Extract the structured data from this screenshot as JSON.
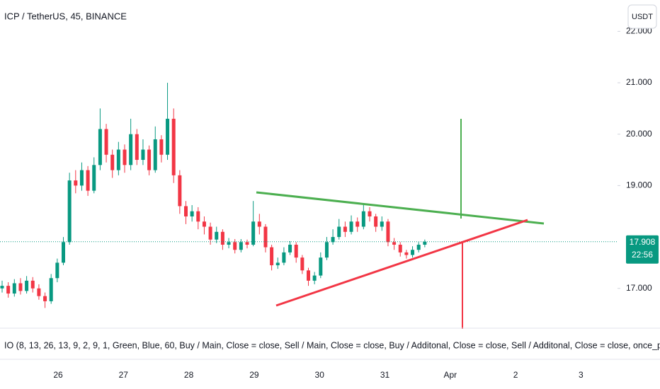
{
  "chart_data": {
    "type": "candlestick",
    "title": "ICP / TetherUS, 45, BINANCE",
    "currency_button": "USDT",
    "last_price": 17.908,
    "countdown": "22:56",
    "indicator": "IO (8, 13, 26, 13, 9, 2, 9, 1, Green, Blue, 60, Buy / Main, Close = close, Sell / Main, Close = close, Buy / Additonal, Close = close, Sell / Additonal, Close = close, once_per_bar_close,",
    "up_color": "#089981",
    "down_color": "#f23645",
    "categories": [
      "26",
      "27",
      "28",
      "29",
      "30",
      "31",
      "Apr",
      "2",
      "3"
    ],
    "ylim": [
      16.24,
      22.61
    ],
    "yticks": [
      {
        "value": 22,
        "label": "22.000"
      },
      {
        "value": 21,
        "label": "21.000"
      },
      {
        "value": 20,
        "label": "20.000"
      },
      {
        "value": 19,
        "label": "19.000"
      },
      {
        "value": 17,
        "label": "17.000"
      }
    ],
    "open": [
      17.0,
      17.05,
      16.9,
      17.1,
      16.95,
      17.15,
      17.0,
      16.85,
      16.75,
      17.2,
      17.5,
      17.9,
      19.1,
      19.0,
      19.3,
      18.9,
      19.4,
      20.1,
      19.6,
      19.3,
      19.7,
      19.4,
      20.0,
      19.5,
      19.7,
      19.3,
      19.9,
      19.6,
      20.3,
      19.2,
      18.6,
      18.4,
      18.5,
      18.3,
      18.2,
      17.95,
      18.1,
      17.85,
      17.9,
      17.75,
      17.9,
      17.85,
      18.3,
      18.2,
      17.8,
      17.45,
      17.5,
      17.7,
      17.85,
      17.6,
      17.35,
      17.15,
      17.25,
      17.6,
      17.9,
      18.0,
      18.2,
      18.1,
      18.3,
      18.2,
      18.5,
      18.4,
      18.2,
      18.3,
      17.9,
      17.85,
      17.7,
      17.65,
      17.75,
      17.85
    ],
    "high": [
      17.15,
      17.12,
      17.18,
      17.2,
      17.24,
      17.22,
      17.08,
      16.92,
      17.28,
      17.58,
      18.0,
      19.25,
      19.3,
      19.45,
      19.38,
      19.55,
      20.5,
      20.2,
      19.7,
      19.85,
      19.8,
      20.3,
      20.1,
      19.9,
      19.78,
      20.15,
      19.98,
      21.0,
      20.5,
      19.3,
      18.7,
      18.62,
      18.58,
      18.4,
      18.28,
      18.2,
      18.15,
      17.98,
      17.96,
      17.96,
      17.95,
      18.7,
      18.45,
      18.25,
      17.85,
      17.6,
      17.8,
      17.92,
      17.9,
      17.65,
      17.4,
      17.32,
      17.7,
      18.0,
      18.15,
      18.35,
      18.3,
      18.42,
      18.38,
      18.65,
      18.58,
      18.45,
      18.4,
      18.35,
      17.98,
      17.9,
      17.75,
      17.82,
      17.9,
      17.95
    ],
    "low": [
      16.92,
      16.82,
      16.84,
      16.88,
      16.9,
      16.92,
      16.78,
      16.62,
      16.7,
      17.12,
      17.45,
      17.85,
      18.85,
      18.9,
      18.8,
      18.85,
      19.3,
      19.45,
      19.15,
      19.2,
      19.25,
      19.3,
      19.4,
      19.4,
      19.2,
      19.25,
      19.45,
      19.5,
      19.05,
      18.45,
      18.25,
      18.3,
      18.15,
      18.05,
      17.85,
      17.88,
      17.75,
      17.78,
      17.68,
      17.7,
      17.78,
      17.82,
      18.05,
      17.7,
      17.35,
      17.38,
      17.45,
      17.65,
      17.5,
      17.28,
      17.05,
      17.08,
      17.2,
      17.55,
      17.85,
      17.95,
      18.0,
      18.05,
      18.1,
      18.15,
      18.3,
      18.1,
      18.12,
      17.82,
      17.75,
      17.62,
      17.58,
      17.6,
      17.7,
      17.8
    ],
    "close": [
      17.05,
      16.9,
      17.1,
      16.95,
      17.15,
      17.0,
      16.85,
      16.75,
      17.2,
      17.5,
      17.9,
      19.1,
      19.0,
      19.3,
      18.9,
      19.4,
      20.1,
      19.6,
      19.3,
      19.7,
      19.4,
      20.0,
      19.5,
      19.7,
      19.3,
      19.9,
      19.6,
      20.3,
      19.2,
      18.6,
      18.4,
      18.5,
      18.3,
      18.2,
      17.95,
      18.1,
      17.85,
      17.9,
      17.75,
      17.9,
      17.85,
      18.3,
      18.2,
      17.8,
      17.45,
      17.5,
      17.7,
      17.85,
      17.6,
      17.35,
      17.15,
      17.25,
      17.6,
      17.9,
      18.0,
      18.2,
      18.1,
      18.3,
      18.2,
      18.5,
      18.4,
      18.2,
      18.3,
      17.9,
      17.85,
      17.7,
      17.65,
      17.75,
      17.85,
      17.908
    ]
  }
}
